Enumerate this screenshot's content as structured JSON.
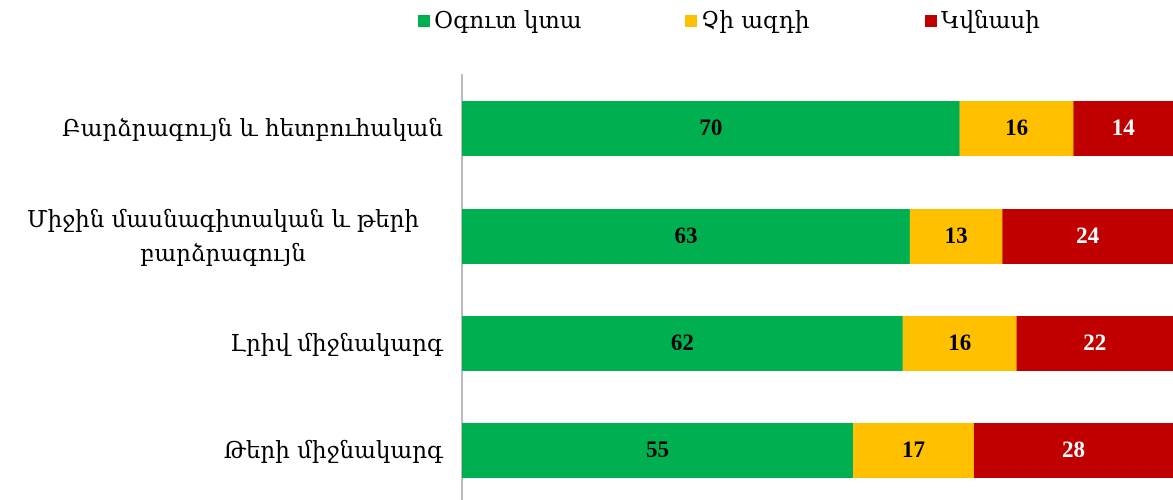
{
  "chart_data": {
    "type": "stacked_bar_horizontal",
    "categories": [
      "Բարձրագույն և հետբուհական",
      "Միջին մասնագիտական և թերի բարձրագույն",
      "Լրիվ միջնակարգ",
      "Թերի միջնակարգ"
    ],
    "series": [
      {
        "name": "Օգուտ կտա",
        "color": "#00b050",
        "values": [
          70,
          63,
          62,
          55
        ]
      },
      {
        "name": "Չի ազդի",
        "color": "#ffc000",
        "values": [
          16,
          13,
          16,
          17
        ]
      },
      {
        "name": "Կվնասի",
        "color": "#c00000",
        "values": [
          14,
          24,
          22,
          28
        ]
      }
    ],
    "xlim": [
      0,
      100
    ],
    "legend": "top"
  }
}
